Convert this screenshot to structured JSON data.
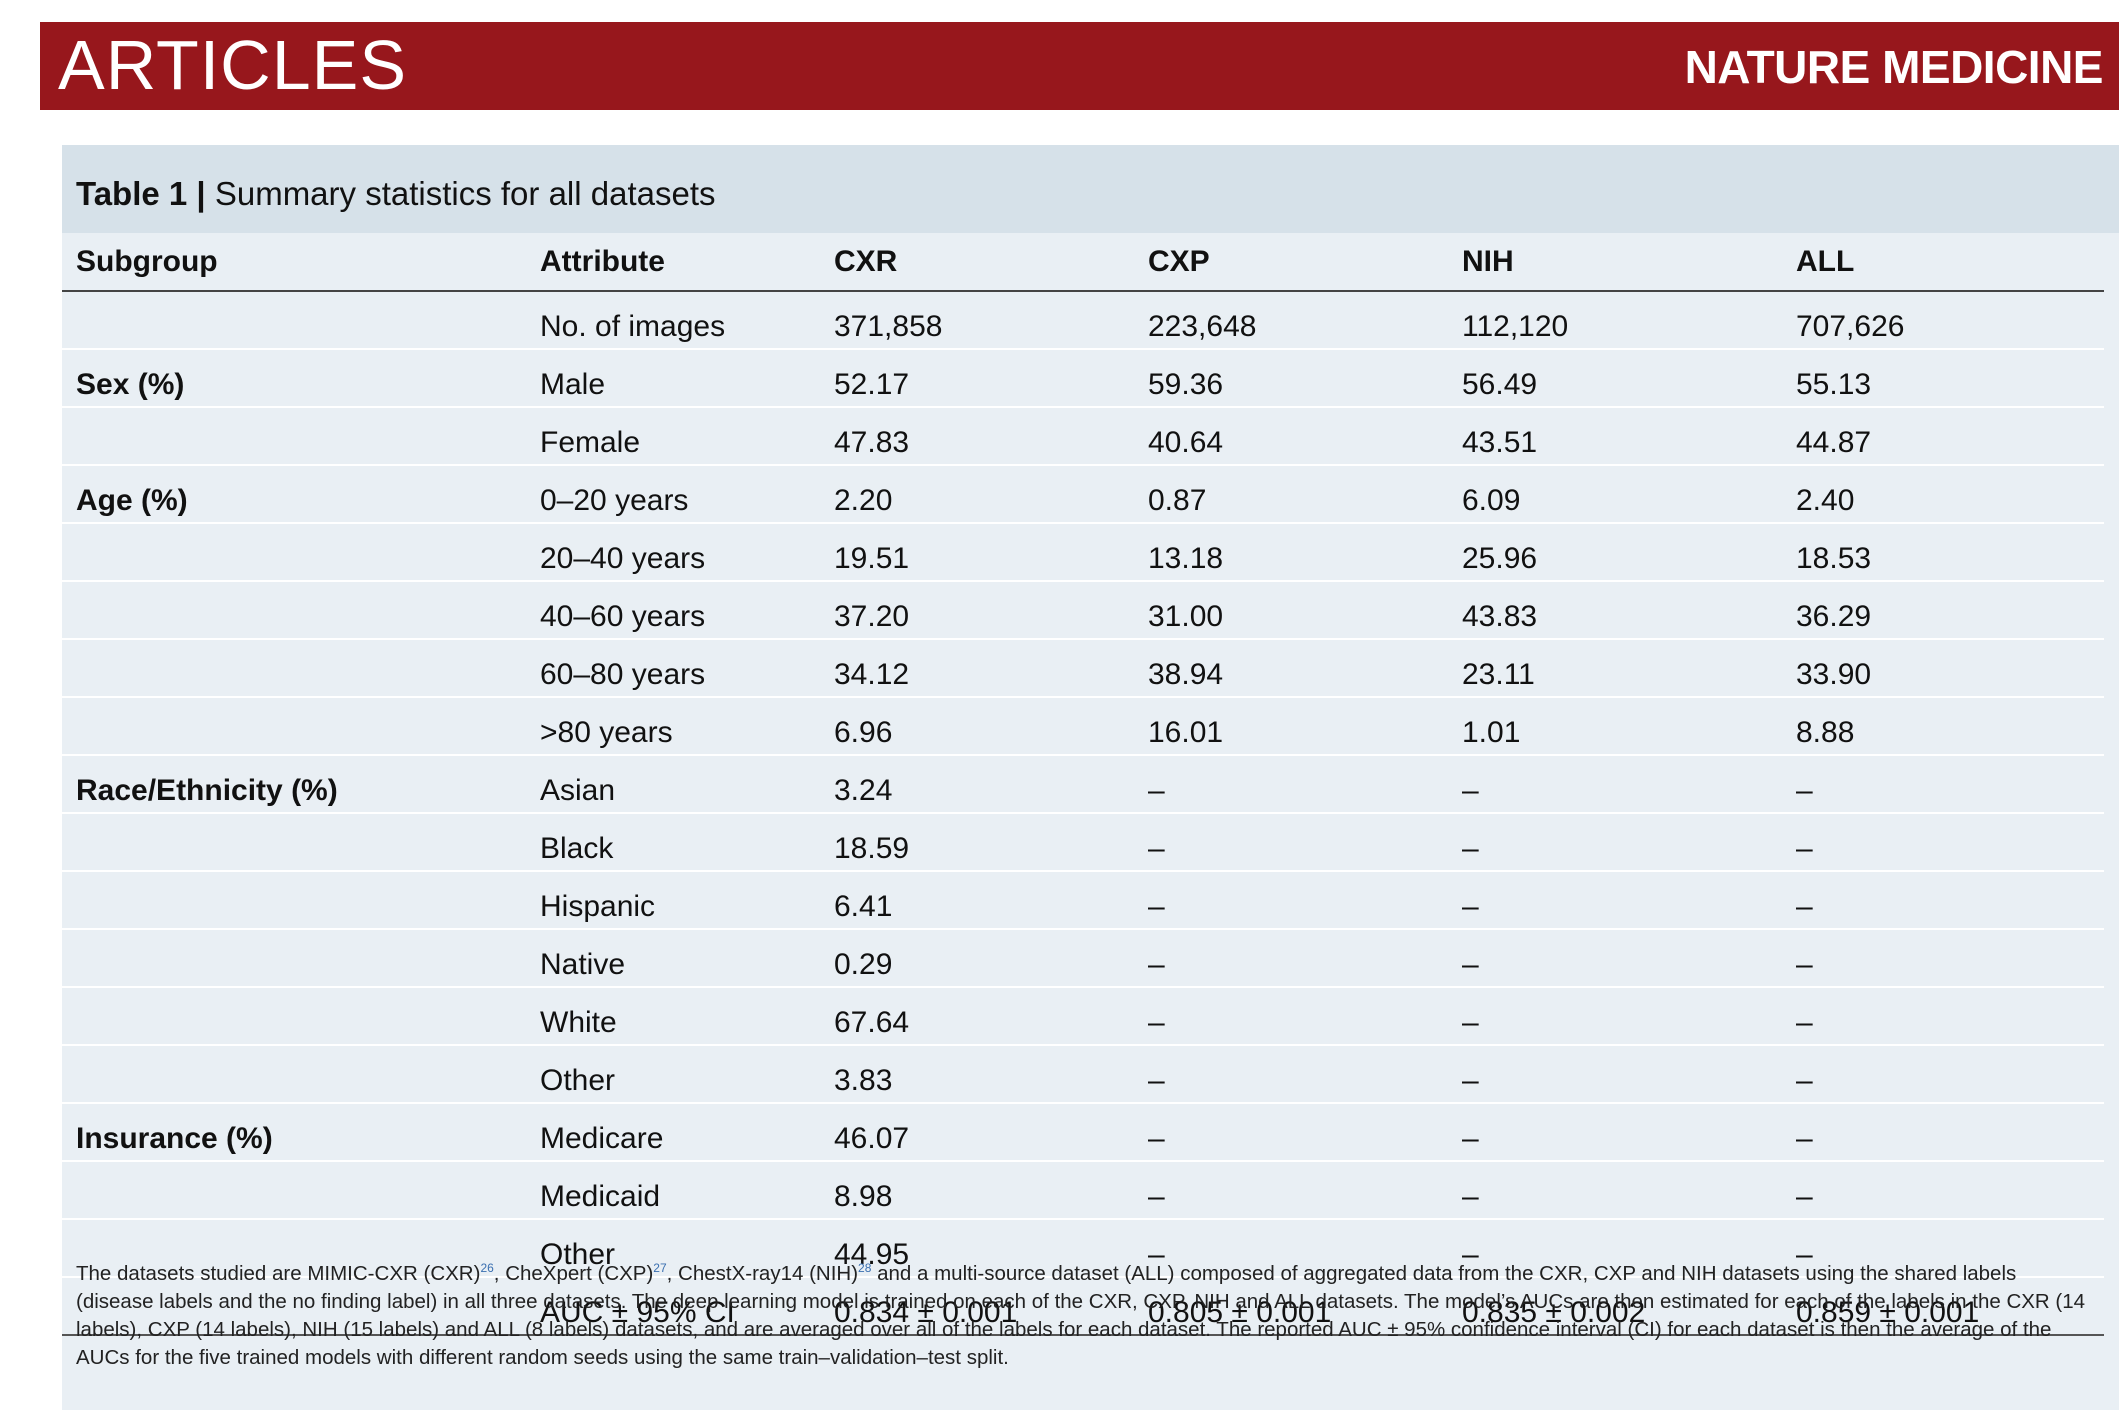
{
  "header": {
    "section": "ARTICLES",
    "journal": "NATURE MEDICINE"
  },
  "table": {
    "label": "Table 1 |",
    "title": " Summary statistics for all datasets",
    "columns": [
      "Subgroup",
      "Attribute",
      "CXR",
      "CXP",
      "NIH",
      "ALL"
    ],
    "rows": [
      [
        "",
        "No. of images",
        "371,858",
        "223,648",
        "112,120",
        "707,626"
      ],
      [
        "Sex (%)",
        "Male",
        "52.17",
        "59.36",
        "56.49",
        "55.13"
      ],
      [
        "",
        "Female",
        "47.83",
        "40.64",
        "43.51",
        "44.87"
      ],
      [
        "Age (%)",
        "0–20 years",
        "2.20",
        "0.87",
        "6.09",
        "2.40"
      ],
      [
        "",
        "20–40 years",
        "19.51",
        "13.18",
        "25.96",
        "18.53"
      ],
      [
        "",
        "40–60 years",
        "37.20",
        "31.00",
        "43.83",
        "36.29"
      ],
      [
        "",
        "60–80 years",
        "34.12",
        "38.94",
        "23.11",
        "33.90"
      ],
      [
        "",
        ">80 years",
        "6.96",
        "16.01",
        "1.01",
        "8.88"
      ],
      [
        "Race/Ethnicity (%)",
        "Asian",
        "3.24",
        "–",
        "–",
        "–"
      ],
      [
        "",
        "Black",
        "18.59",
        "–",
        "–",
        "–"
      ],
      [
        "",
        "Hispanic",
        "6.41",
        "–",
        "–",
        "–"
      ],
      [
        "",
        "Native",
        "0.29",
        "–",
        "–",
        "–"
      ],
      [
        "",
        "White",
        "67.64",
        "–",
        "–",
        "–"
      ],
      [
        "",
        "Other",
        "3.83",
        "–",
        "–",
        "–"
      ],
      [
        "Insurance (%)",
        "Medicare",
        "46.07",
        "–",
        "–",
        "–"
      ],
      [
        "",
        "Medicaid",
        "8.98",
        "–",
        "–",
        "–"
      ],
      [
        "",
        "Other",
        "44.95",
        "–",
        "–",
        "–"
      ],
      [
        "",
        "AUC ± 95% CI",
        "0.834 ± 0.001",
        "0.805 ± 0.001",
        "0.835 ± 0.002",
        "0.859 ± 0.001"
      ]
    ],
    "footnote": {
      "part1": "The datasets studied are MIMIC-CXR (CXR)",
      "ref1": "26",
      "part2": ", CheXpert (CXP)",
      "ref2": "27",
      "part3": ", ChestX-ray14 (NIH)",
      "ref3": "28",
      "part4": " and a multi-source dataset (ALL) composed of aggregated data from the CXR, CXP and NIH datasets using the shared labels (disease labels and the no finding label) in all three datasets. The deep learning model is trained on each of the CXR, CXP, NIH and ALL datasets. The model’s AUCs are then estimated for each of the labels in the CXR (14 labels), CXP (14 labels), NIH (15 labels) and ALL (8 labels) datasets, and are averaged over all of the labels for each dataset. The reported AUC ± 95% confidence interval (CI) for each dataset is then the average of the AUCs for the five trained models with different random seeds using the same train–validation–test split."
    }
  }
}
